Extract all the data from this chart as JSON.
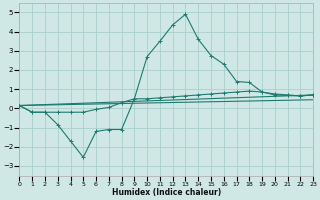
{
  "xlabel": "Humidex (Indice chaleur)",
  "background_color": "#cfe8e5",
  "grid_color": "#aacfcc",
  "line_color": "#1e7a6e",
  "xlim": [
    0,
    23
  ],
  "ylim": [
    -3.5,
    5.5
  ],
  "yticks": [
    -3,
    -2,
    -1,
    0,
    1,
    2,
    3,
    4,
    5
  ],
  "xticks": [
    0,
    1,
    2,
    3,
    4,
    5,
    6,
    7,
    8,
    9,
    10,
    11,
    12,
    13,
    14,
    15,
    16,
    17,
    18,
    19,
    20,
    21,
    22,
    23
  ],
  "line1_x": [
    0,
    1,
    2,
    3,
    4,
    5,
    6,
    7,
    8,
    9,
    10,
    11,
    12,
    13,
    14,
    15,
    16,
    17,
    18,
    19,
    20,
    21,
    22,
    23
  ],
  "line1_y": [
    0.15,
    -0.2,
    -0.2,
    -0.85,
    -1.7,
    -2.55,
    -1.2,
    -1.1,
    -1.1,
    0.5,
    2.7,
    3.5,
    4.35,
    4.9,
    3.6,
    2.75,
    2.3,
    1.4,
    1.35,
    0.85,
    0.7,
    0.68,
    0.65,
    0.7
  ],
  "line2_x": [
    0,
    1,
    2,
    3,
    4,
    5,
    6,
    7,
    8,
    9,
    10,
    11,
    12,
    13,
    14,
    15,
    16,
    17,
    18,
    19,
    20,
    21,
    22,
    23
  ],
  "line2_y": [
    0.15,
    -0.2,
    -0.2,
    -0.2,
    -0.2,
    -0.2,
    -0.05,
    0.05,
    0.3,
    0.5,
    0.5,
    0.55,
    0.6,
    0.65,
    0.7,
    0.75,
    0.8,
    0.85,
    0.9,
    0.85,
    0.75,
    0.7,
    0.65,
    0.7
  ],
  "trend1_start": 0.15,
  "trend1_end": 0.7,
  "trend2_start": 0.15,
  "trend2_end": 0.45
}
